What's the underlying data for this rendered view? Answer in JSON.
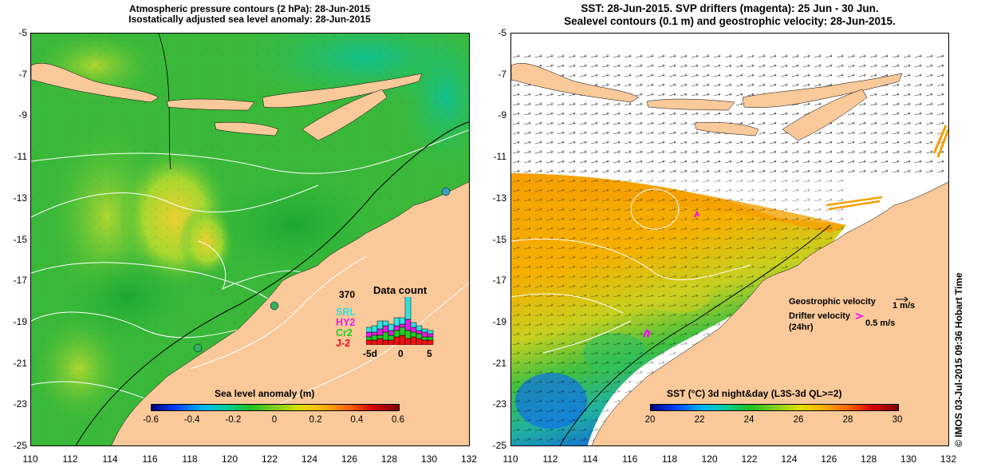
{
  "left_map": {
    "title_line1": "Atmospheric pressure contours (2 hPa): 28-Jun-2015",
    "title_line2": "Isostatically adjusted sea level anomaly: 28-Jun-2015",
    "colorbar": {
      "title": "Sea level anomaly (m)",
      "ticks": [
        "-0.6",
        "-0.4",
        "-0.2",
        "0",
        "0.2",
        "0.4",
        "0.6"
      ],
      "range": [
        -0.6,
        0.6
      ]
    },
    "data_count": {
      "title": "Data count",
      "max_label": "370",
      "x_ticks": [
        "-5d",
        "0",
        "5"
      ],
      "satellites": [
        {
          "name": "SRL",
          "color": "#33e0e0"
        },
        {
          "name": "HY2",
          "color": "#e020e0"
        },
        {
          "name": "Cr2",
          "color": "#22cc22"
        },
        {
          "name": "J-2",
          "color": "#ee1111"
        }
      ]
    }
  },
  "right_map": {
    "title_line1": "SST: 28-Jun-2015. SVP drifters (magenta): 25 Jun - 30 Jun.",
    "title_line2": "Sealevel contours (0.1 m) and geostrophic velocity: 28-Jun-2015.",
    "colorbar": {
      "title": "SST (°C) 3d night&day (L3S-3d QL>=2)",
      "ticks": [
        "20",
        "22",
        "24",
        "26",
        "28",
        "30"
      ],
      "range": [
        20,
        30
      ]
    },
    "legend": {
      "geostrophic_label": "Geostrophic velocity",
      "geostrophic_scale": "1 m/s",
      "drifter_label": "Drifter velocity",
      "drifter_period": "(24hr)",
      "drifter_scale": "0.5 m/s"
    }
  },
  "axes": {
    "lat_ticks": [
      "-5",
      "-7",
      "-9",
      "-11",
      "-13",
      "-15",
      "-17",
      "-19",
      "-21",
      "-23",
      "-25"
    ],
    "lon_ticks": [
      "110",
      "112",
      "114",
      "116",
      "118",
      "120",
      "122",
      "124",
      "126",
      "128",
      "130",
      "132"
    ],
    "lat_range": [
      -25,
      -5
    ],
    "lon_range": [
      110,
      132
    ]
  },
  "footer": "© IMOS 03-Jul-2015 09:36 Hobart Time",
  "colors": {
    "land": "#fac99a",
    "ocean_green": "#33bb33",
    "sst_orange": "#f5a000",
    "drifter": "#ff00ff"
  }
}
